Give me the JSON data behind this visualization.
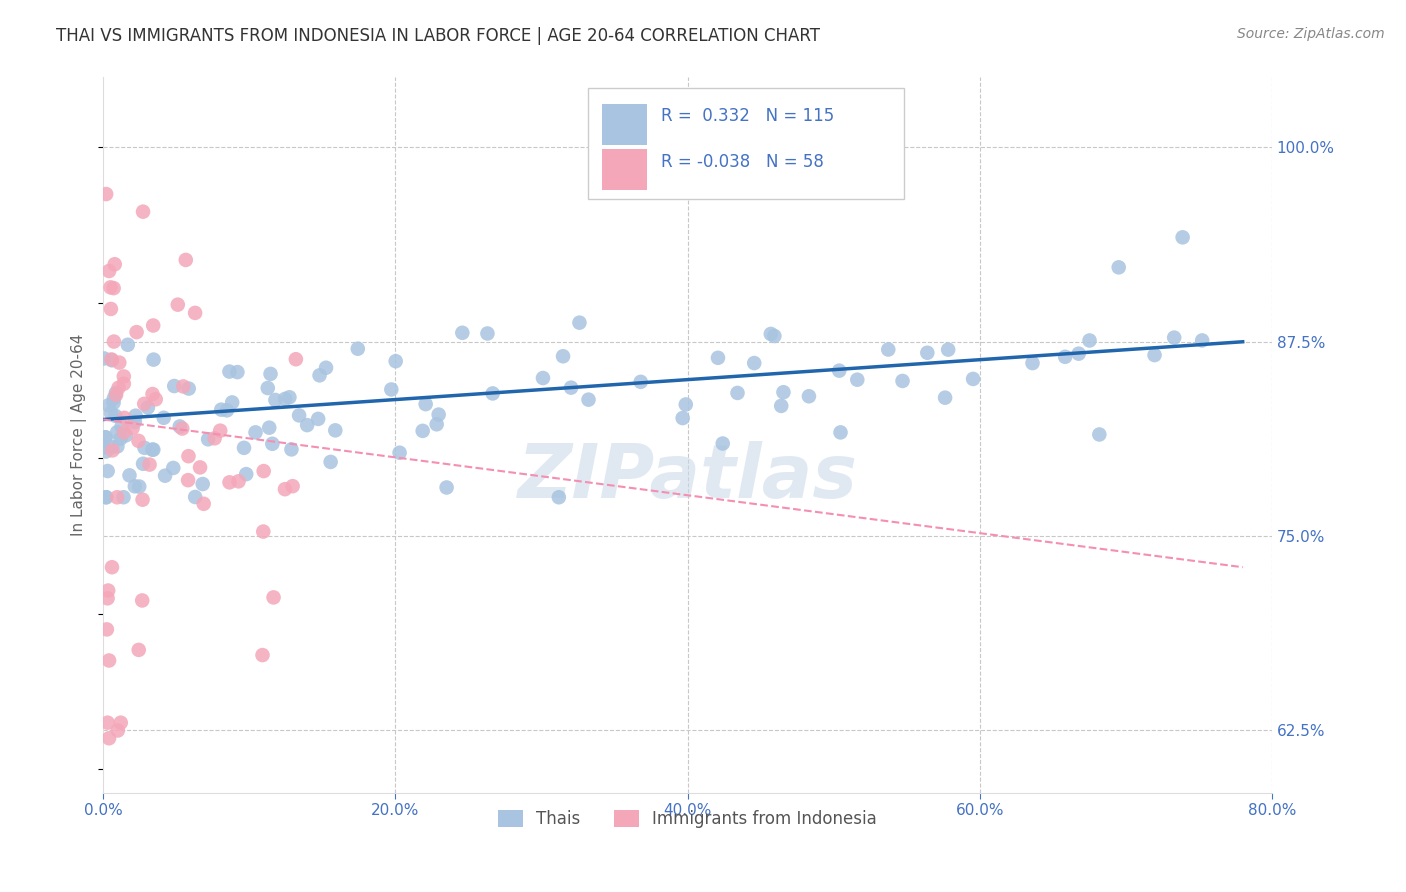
{
  "title": "THAI VS IMMIGRANTS FROM INDONESIA IN LABOR FORCE | AGE 20-64 CORRELATION CHART",
  "source": "Source: ZipAtlas.com",
  "ylabel": "In Labor Force | Age 20-64",
  "xlabel_ticks": [
    "0.0%",
    "20.0%",
    "40.0%",
    "60.0%",
    "80.0%"
  ],
  "xlabel_vals": [
    0.0,
    0.2,
    0.4,
    0.6,
    0.8
  ],
  "ylabel_ticks": [
    "62.5%",
    "75.0%",
    "87.5%",
    "100.0%"
  ],
  "ylabel_vals": [
    0.625,
    0.75,
    0.875,
    1.0
  ],
  "xlim": [
    0.0,
    0.8
  ],
  "ylim": [
    0.585,
    1.045
  ],
  "R_thai": 0.332,
  "N_thai": 115,
  "R_indo": -0.038,
  "N_indo": 58,
  "thai_color": "#a8c4e0",
  "indo_color": "#f4a7b9",
  "thai_line_color": "#2166ac",
  "indo_line_color": "#f48fb1",
  "title_color": "#333333",
  "axis_label_color": "#4472c4",
  "watermark_color": "#c8d8e8",
  "background_color": "#ffffff",
  "grid_color": "#c8c8c8",
  "legend_text_color": "#4472c4"
}
